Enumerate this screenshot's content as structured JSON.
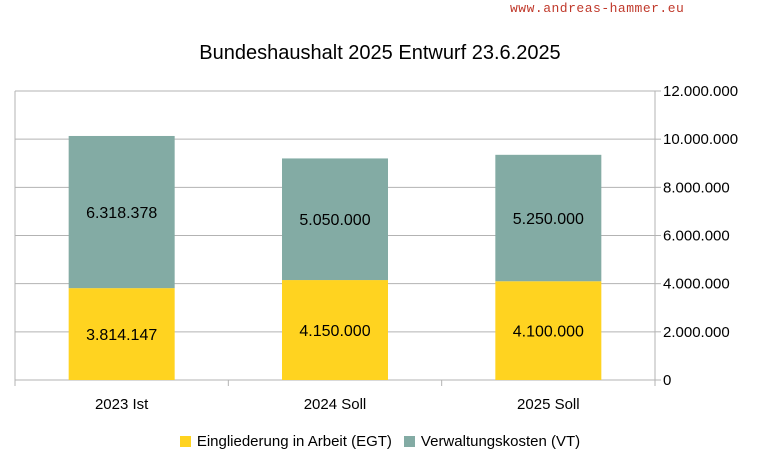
{
  "watermark": "www.andreas-hammer.eu",
  "chart_data": {
    "type": "bar",
    "stacked": true,
    "title": "Bundeshaushalt 2025 Entwurf 23.6.2025",
    "categories": [
      "2023 Ist",
      "2024 Soll",
      "2025 Soll"
    ],
    "series": [
      {
        "name": "Eingliederung in Arbeit (EGT)",
        "values": [
          3814147,
          4150000,
          4100000
        ],
        "labels": [
          "3.814.147",
          "4.150.000",
          "4.100.000"
        ],
        "color": "#ffd320"
      },
      {
        "name": "Verwaltungskosten (VT)",
        "values": [
          6318378,
          5050000,
          5250000
        ],
        "labels": [
          "6.318.378",
          "5.050.000",
          "5.250.000"
        ],
        "color": "#83aba4"
      }
    ],
    "ylim": [
      0,
      12000000
    ],
    "yticks": [
      0,
      2000000,
      4000000,
      6000000,
      8000000,
      10000000,
      12000000
    ],
    "ytick_labels": [
      "0",
      "2.000.000",
      "4.000.000",
      "6.000.000",
      "8.000.000",
      "10.000.000",
      "12.000.000"
    ],
    "y_axis_side": "right",
    "grid": true,
    "legend": "bottom",
    "xlabel": "",
    "ylabel": ""
  }
}
